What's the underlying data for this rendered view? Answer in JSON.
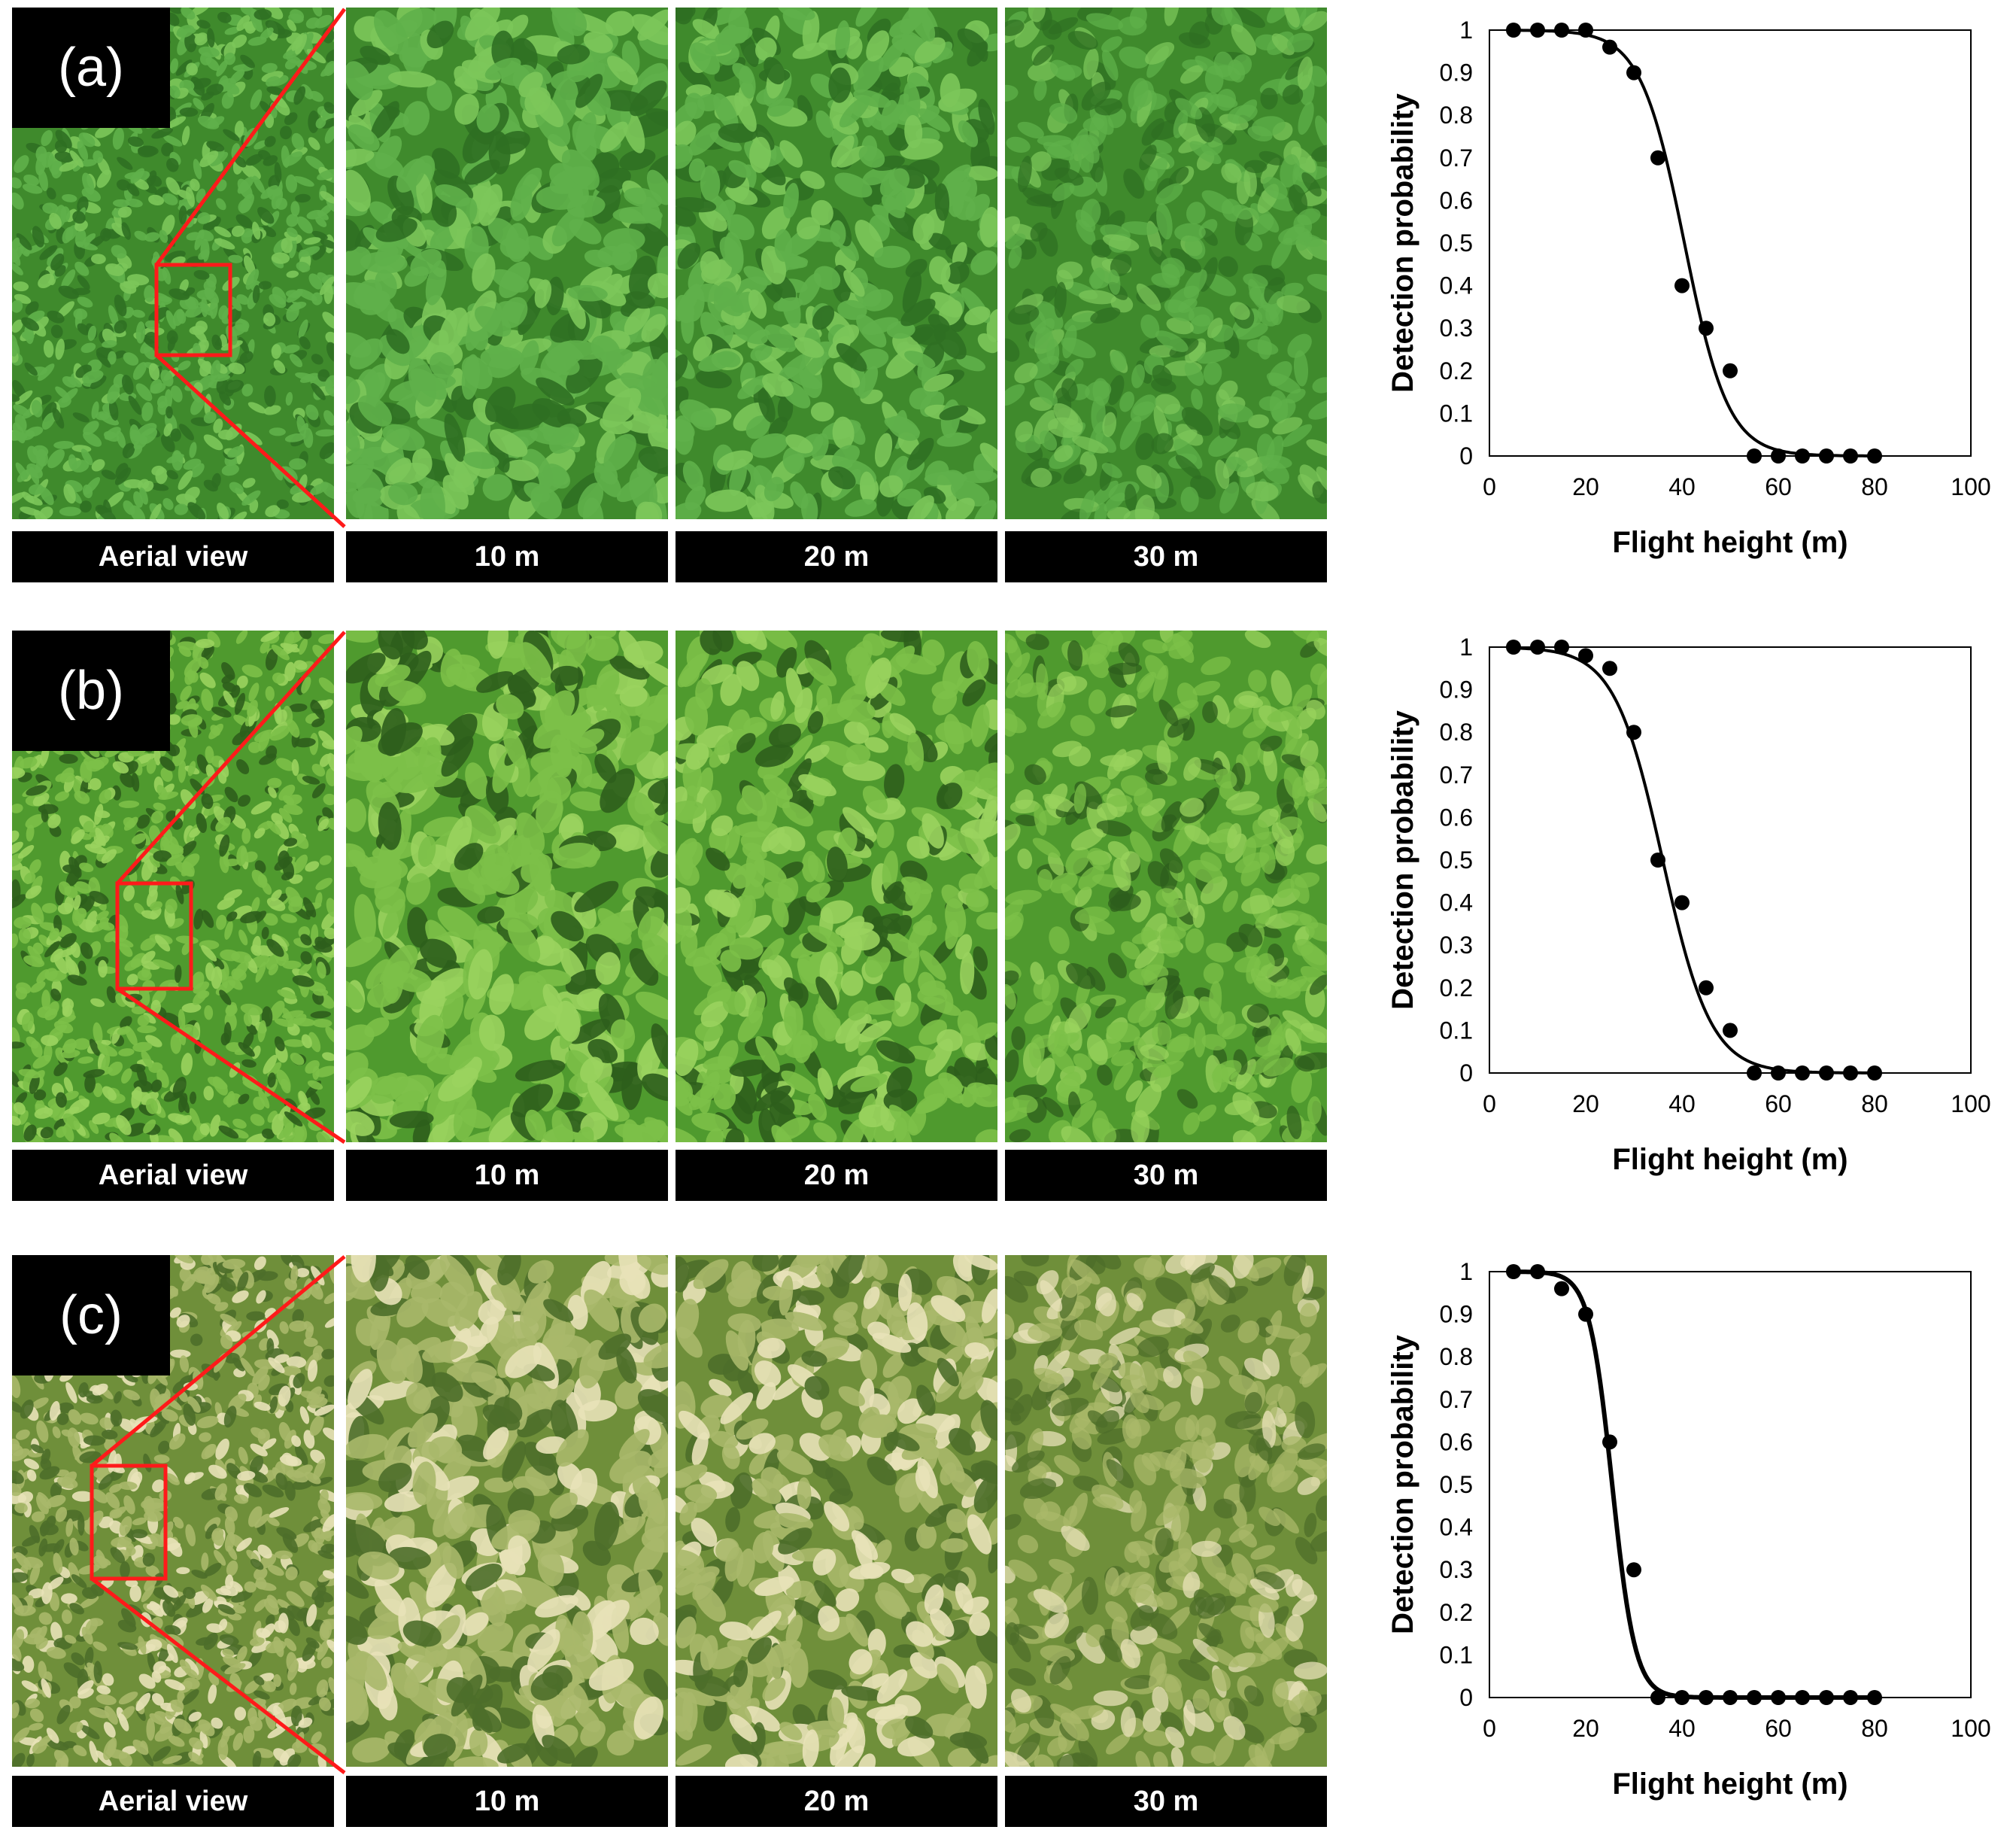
{
  "panels": [
    {
      "id": "a",
      "tag": "(a)",
      "captions": [
        "Aerial view",
        "10 m",
        "20 m",
        "30 m"
      ],
      "colors": {
        "base": "#3f8a2c",
        "leaf1": "#5fb04a",
        "leaf2": "#2f6f22",
        "leaf3": "#7cc65a"
      }
    },
    {
      "id": "b",
      "tag": "(b)",
      "captions": [
        "Aerial view",
        "10 m",
        "20 m",
        "30 m"
      ],
      "colors": {
        "base": "#4f9a2e",
        "leaf1": "#7cc048",
        "leaf2": "#2d5e1c",
        "leaf3": "#9ad35e"
      }
    },
    {
      "id": "c",
      "tag": "(c)",
      "captions": [
        "Aerial view",
        "10 m",
        "20 m",
        "30 m"
      ],
      "colors": {
        "base": "#6f8f3a",
        "leaf1": "#a9b86a",
        "leaf2": "#4d6e2a",
        "leaf3": "#e8e2b8"
      }
    }
  ],
  "chart_data": [
    {
      "type": "scatter",
      "panel": "(a)",
      "xlabel": "Flight height (m)",
      "ylabel": "Detection probability",
      "xlim": [
        0,
        100
      ],
      "ylim": [
        0,
        1
      ],
      "xticks": [
        "0",
        "20",
        "40",
        "60",
        "80",
        "100"
      ],
      "yticks": [
        "0",
        "0.1",
        "0.2",
        "0.3",
        "0.4",
        "0.5",
        "0.6",
        "0.7",
        "0.8",
        "0.9",
        "1"
      ],
      "points": {
        "x": [
          5,
          10,
          15,
          20,
          25,
          30,
          35,
          40,
          45,
          50,
          55,
          60,
          65,
          70,
          75,
          80
        ],
        "y": [
          1,
          1,
          1,
          1,
          0.96,
          0.9,
          0.7,
          0.4,
          0.3,
          0.2,
          0,
          0,
          0,
          0,
          0,
          0
        ]
      },
      "fit": {
        "midpoint": 40.5,
        "slope": 0.22
      },
      "grid": false,
      "legend": "none"
    },
    {
      "type": "scatter",
      "panel": "(b)",
      "xlabel": "Flight height (m)",
      "ylabel": "Detection probability",
      "xlim": [
        0,
        100
      ],
      "ylim": [
        0,
        1
      ],
      "xticks": [
        "0",
        "20",
        "40",
        "60",
        "80",
        "100"
      ],
      "yticks": [
        "0",
        "0.1",
        "0.2",
        "0.3",
        "0.4",
        "0.5",
        "0.6",
        "0.7",
        "0.8",
        "0.9",
        "1"
      ],
      "points": {
        "x": [
          5,
          10,
          15,
          20,
          25,
          30,
          35,
          40,
          45,
          50,
          55,
          60,
          65,
          70,
          75,
          80
        ],
        "y": [
          1,
          1,
          1,
          0.98,
          0.95,
          0.8,
          0.5,
          0.4,
          0.2,
          0.1,
          0,
          0,
          0,
          0,
          0,
          0
        ]
      },
      "fit": {
        "midpoint": 36,
        "slope": 0.2
      },
      "grid": false,
      "legend": "none"
    },
    {
      "type": "scatter",
      "panel": "(c)",
      "xlabel": "Flight height (m)",
      "ylabel": "Detection probability",
      "xlim": [
        0,
        100
      ],
      "ylim": [
        0,
        1
      ],
      "xticks": [
        "0",
        "20",
        "40",
        "60",
        "80",
        "100"
      ],
      "yticks": [
        "0",
        "0.1",
        "0.2",
        "0.3",
        "0.4",
        "0.5",
        "0.6",
        "0.7",
        "0.8",
        "0.9",
        "1"
      ],
      "points": {
        "x": [
          5,
          10,
          15,
          20,
          25,
          30,
          35,
          40,
          45,
          50,
          55,
          60,
          65,
          70,
          75,
          80
        ],
        "y": [
          1,
          1,
          0.96,
          0.9,
          0.6,
          0.3,
          0,
          0,
          0,
          0,
          0,
          0,
          0,
          0,
          0,
          0
        ]
      },
      "fit": {
        "midpoint": 25.5,
        "slope": 0.42
      },
      "grid": false,
      "legend": "none"
    }
  ]
}
